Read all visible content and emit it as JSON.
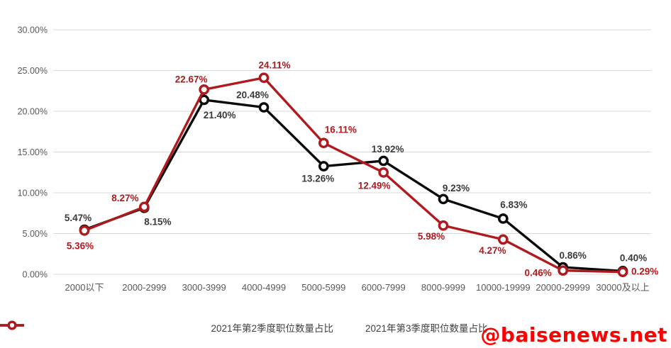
{
  "chart_data": {
    "type": "line",
    "title": "",
    "categories": [
      "2000以下",
      "2000-2999",
      "3000-3999",
      "4000-4999",
      "5000-5999",
      "6000-7999",
      "8000-9999",
      "10000-19999",
      "20000-29999",
      "30000及以上"
    ],
    "y_axis": {
      "min": 0,
      "max": 30,
      "step": 5,
      "ticks": [
        {
          "label": "30.00%",
          "value": 30
        },
        {
          "label": "25.00%",
          "value": 25
        },
        {
          "label": "20.00%",
          "value": 20
        },
        {
          "label": "15.00%",
          "value": 15
        },
        {
          "label": "10.00%",
          "value": 10
        },
        {
          "label": "5.00%",
          "value": 5
        },
        {
          "label": "0.00%",
          "value": 0
        }
      ]
    },
    "grid": true,
    "legend_position": "bottom",
    "series": [
      {
        "name": "2021年第2季度职位数量占比",
        "color": "#0a0a0a",
        "label_color": "#3a3a3a",
        "values": [
          5.47,
          8.15,
          21.4,
          20.48,
          13.26,
          13.92,
          9.23,
          6.83,
          0.86,
          0.4
        ],
        "labels": [
          "5.47%",
          "8.15%",
          "21.40%",
          "20.48%",
          "13.26%",
          "13.92%",
          "9.23%",
          "6.83%",
          "0.86%",
          "0.40%"
        ],
        "label_offsets": [
          [
            -9,
            -12,
            "middle"
          ],
          [
            19,
            24,
            "middle"
          ],
          [
            22,
            26,
            "middle"
          ],
          [
            -16,
            -13,
            "middle"
          ],
          [
            -8,
            22,
            "middle"
          ],
          [
            6,
            -12,
            "middle"
          ],
          [
            18,
            -11,
            "middle"
          ],
          [
            15,
            -15,
            "middle"
          ],
          [
            14,
            -12,
            "middle"
          ],
          [
            15,
            -14,
            "middle"
          ]
        ]
      },
      {
        "name": "2021年第3季度职位数量占比",
        "color": "#b0191d",
        "label_color": "#b0191d",
        "values": [
          5.36,
          8.27,
          22.67,
          24.11,
          16.11,
          12.49,
          5.98,
          4.27,
          0.46,
          0.29
        ],
        "labels": [
          "5.36%",
          "8.27%",
          "22.67%",
          "24.11%",
          "16.11%",
          "12.49%",
          "5.98%",
          "4.27%",
          "0.46%",
          "0.29%"
        ],
        "label_offsets": [
          [
            -6,
            26,
            "middle"
          ],
          [
            -27,
            -8,
            "middle"
          ],
          [
            -18,
            -10,
            "middle"
          ],
          [
            15,
            -13,
            "middle"
          ],
          [
            24,
            -14,
            "middle"
          ],
          [
            -13,
            23,
            "middle"
          ],
          [
            -17,
            20,
            "middle"
          ],
          [
            -15,
            20,
            "middle"
          ],
          [
            -35,
            8,
            "middle"
          ],
          [
            12,
            4,
            "start"
          ]
        ]
      }
    ],
    "axis_text_color": "#595959",
    "gridline_color": "#d9d9d9"
  },
  "legend": {
    "items": [
      {
        "label": "2021年第2季度职位数量占比",
        "color": "#0a0a0a"
      },
      {
        "label": "2021年第3季度职位数量占比",
        "color": "#b0191d"
      }
    ]
  },
  "watermark": {
    "text": "@baisenews.net",
    "color": "#ff0000"
  }
}
